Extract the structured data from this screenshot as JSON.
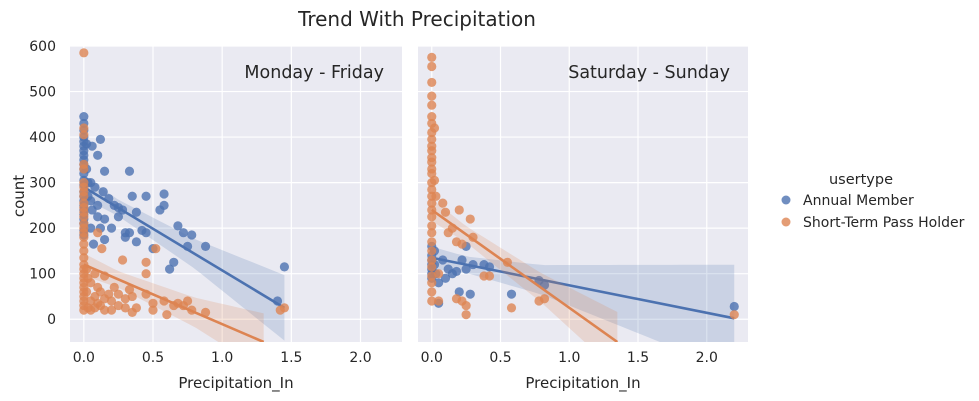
{
  "chart_data": {
    "type": "scatter",
    "title": "Trend With Precipitation",
    "xlabel": "Precipitation_In",
    "ylabel": "count",
    "xlim": [
      -0.1,
      2.3
    ],
    "ylim": [
      -50,
      600
    ],
    "xticks": [
      "0.0",
      "0.5",
      "1.0",
      "1.5",
      "2.0"
    ],
    "xtick_values": [
      0,
      0.5,
      1.0,
      1.5,
      2.0
    ],
    "yticks": [
      "0",
      "100",
      "200",
      "300",
      "400",
      "500",
      "600"
    ],
    "ytick_values": [
      0,
      100,
      200,
      300,
      400,
      500,
      600
    ],
    "grid": true,
    "legend": {
      "title": "usertype",
      "placement": "right",
      "entries": [
        "Annual Member",
        "Short-Term Pass Holder"
      ]
    },
    "colors": {
      "Annual Member": "#4c72b0",
      "Short-Term Pass Holder": "#dd8452",
      "background": "#eaeaf2",
      "grid": "#ffffff"
    },
    "panels": [
      {
        "title": "Monday - Friday",
        "series": [
          {
            "name": "Annual Member",
            "points": [
              [
                0,
                445
              ],
              [
                0,
                430
              ],
              [
                0,
                415
              ],
              [
                0,
                400
              ],
              [
                0,
                390
              ],
              [
                0,
                380
              ],
              [
                0,
                370
              ],
              [
                0,
                360
              ],
              [
                0,
                350
              ],
              [
                0,
                340
              ],
              [
                0,
                330
              ],
              [
                0,
                320
              ],
              [
                0,
                305
              ],
              [
                0,
                295
              ],
              [
                0,
                280
              ],
              [
                0,
                270
              ],
              [
                0,
                260
              ],
              [
                0,
                250
              ],
              [
                0,
                240
              ],
              [
                0,
                230
              ],
              [
                0,
                220
              ],
              [
                0,
                210
              ],
              [
                0,
                195
              ],
              [
                0,
                185
              ],
              [
                0.02,
                385
              ],
              [
                0.02,
                330
              ],
              [
                0.03,
                300
              ],
              [
                0.03,
                270
              ],
              [
                0.05,
                300
              ],
              [
                0.05,
                260
              ],
              [
                0.05,
                200
              ],
              [
                0.06,
                380
              ],
              [
                0.06,
                240
              ],
              [
                0.07,
                165
              ],
              [
                0.08,
                290
              ],
              [
                0.1,
                360
              ],
              [
                0.1,
                250
              ],
              [
                0.1,
                225
              ],
              [
                0.12,
                395
              ],
              [
                0.12,
                200
              ],
              [
                0.14,
                280
              ],
              [
                0.15,
                325
              ],
              [
                0.15,
                220
              ],
              [
                0.15,
                175
              ],
              [
                0.18,
                265
              ],
              [
                0.2,
                200
              ],
              [
                0.22,
                250
              ],
              [
                0.25,
                245
              ],
              [
                0.25,
                225
              ],
              [
                0.28,
                240
              ],
              [
                0.3,
                180
              ],
              [
                0.3,
                190
              ],
              [
                0.33,
                325
              ],
              [
                0.33,
                190
              ],
              [
                0.35,
                270
              ],
              [
                0.38,
                235
              ],
              [
                0.38,
                170
              ],
              [
                0.42,
                195
              ],
              [
                0.45,
                270
              ],
              [
                0.45,
                190
              ],
              [
                0.5,
                155
              ],
              [
                0.55,
                240
              ],
              [
                0.58,
                275
              ],
              [
                0.58,
                250
              ],
              [
                0.62,
                110
              ],
              [
                0.65,
                125
              ],
              [
                0.68,
                205
              ],
              [
                0.72,
                190
              ],
              [
                0.75,
                160
              ],
              [
                0.78,
                185
              ],
              [
                0.88,
                160
              ],
              [
                1.4,
                40
              ],
              [
                1.45,
                115
              ]
            ],
            "fit": [
              [
                0,
                290
              ],
              [
                1.45,
                25
              ]
            ]
          },
          {
            "name": "Short-Term Pass Holder",
            "points": [
              [
                0,
                585
              ],
              [
                0,
                420
              ],
              [
                0,
                405
              ],
              [
                0,
                340
              ],
              [
                0,
                330
              ],
              [
                0,
                300
              ],
              [
                0,
                290
              ],
              [
                0,
                280
              ],
              [
                0,
                270
              ],
              [
                0,
                255
              ],
              [
                0,
                245
              ],
              [
                0,
                235
              ],
              [
                0,
                225
              ],
              [
                0,
                210
              ],
              [
                0,
                200
              ],
              [
                0,
                190
              ],
              [
                0,
                180
              ],
              [
                0,
                165
              ],
              [
                0,
                150
              ],
              [
                0,
                135
              ],
              [
                0,
                120
              ],
              [
                0,
                110
              ],
              [
                0,
                100
              ],
              [
                0,
                90
              ],
              [
                0,
                80
              ],
              [
                0,
                70
              ],
              [
                0,
                60
              ],
              [
                0,
                50
              ],
              [
                0,
                40
              ],
              [
                0,
                30
              ],
              [
                0,
                20
              ],
              [
                0.02,
                110
              ],
              [
                0.02,
                60
              ],
              [
                0.03,
                90
              ],
              [
                0.03,
                25
              ],
              [
                0.05,
                80
              ],
              [
                0.05,
                40
              ],
              [
                0.05,
                20
              ],
              [
                0.08,
                100
              ],
              [
                0.08,
                50
              ],
              [
                0.08,
                25
              ],
              [
                0.1,
                190
              ],
              [
                0.1,
                70
              ],
              [
                0.1,
                35
              ],
              [
                0.12,
                60
              ],
              [
                0.12,
                30
              ],
              [
                0.13,
                155
              ],
              [
                0.15,
                95
              ],
              [
                0.15,
                45
              ],
              [
                0.15,
                20
              ],
              [
                0.18,
                55
              ],
              [
                0.2,
                40
              ],
              [
                0.2,
                20
              ],
              [
                0.22,
                70
              ],
              [
                0.25,
                30
              ],
              [
                0.25,
                55
              ],
              [
                0.28,
                130
              ],
              [
                0.3,
                25
              ],
              [
                0.3,
                45
              ],
              [
                0.33,
                65
              ],
              [
                0.35,
                15
              ],
              [
                0.35,
                50
              ],
              [
                0.38,
                25
              ],
              [
                0.45,
                100
              ],
              [
                0.45,
                55
              ],
              [
                0.45,
                125
              ],
              [
                0.5,
                20
              ],
              [
                0.5,
                35
              ],
              [
                0.52,
                155
              ],
              [
                0.58,
                40
              ],
              [
                0.6,
                10
              ],
              [
                0.65,
                30
              ],
              [
                0.68,
                35
              ],
              [
                0.72,
                30
              ],
              [
                0.75,
                40
              ],
              [
                0.78,
                20
              ],
              [
                0.88,
                15
              ],
              [
                1.42,
                20
              ],
              [
                1.45,
                25
              ]
            ],
            "fit": [
              [
                0,
                120
              ],
              [
                1.3,
                -50
              ]
            ]
          }
        ]
      },
      {
        "title": "Saturday - Sunday",
        "series": [
          {
            "name": "Annual Member",
            "points": [
              [
                0,
                160
              ],
              [
                0,
                140
              ],
              [
                0,
                130
              ],
              [
                0,
                120
              ],
              [
                0,
                110
              ],
              [
                0,
                100
              ],
              [
                0,
                90
              ],
              [
                0.02,
                150
              ],
              [
                0.02,
                120
              ],
              [
                0.03,
                100
              ],
              [
                0.05,
                80
              ],
              [
                0.05,
                35
              ],
              [
                0.08,
                130
              ],
              [
                0.1,
                90
              ],
              [
                0.12,
                110
              ],
              [
                0.15,
                100
              ],
              [
                0.18,
                105
              ],
              [
                0.2,
                60
              ],
              [
                0.22,
                130
              ],
              [
                0.25,
                160
              ],
              [
                0.25,
                110
              ],
              [
                0.28,
                55
              ],
              [
                0.3,
                120
              ],
              [
                0.38,
                120
              ],
              [
                0.42,
                115
              ],
              [
                0.58,
                55
              ],
              [
                0.78,
                85
              ],
              [
                0.82,
                75
              ],
              [
                2.2,
                28
              ]
            ],
            "fit": [
              [
                0,
                135
              ],
              [
                2.2,
                2
              ]
            ]
          },
          {
            "name": "Short-Term Pass Holder",
            "points": [
              [
                0,
                575
              ],
              [
                0,
                555
              ],
              [
                0,
                520
              ],
              [
                0,
                490
              ],
              [
                0,
                470
              ],
              [
                0,
                445
              ],
              [
                0,
                430
              ],
              [
                0,
                410
              ],
              [
                0,
                395
              ],
              [
                0,
                380
              ],
              [
                0,
                370
              ],
              [
                0,
                355
              ],
              [
                0,
                345
              ],
              [
                0,
                330
              ],
              [
                0,
                320
              ],
              [
                0,
                300
              ],
              [
                0,
                285
              ],
              [
                0,
                270
              ],
              [
                0,
                255
              ],
              [
                0,
                240
              ],
              [
                0,
                225
              ],
              [
                0,
                205
              ],
              [
                0,
                190
              ],
              [
                0,
                170
              ],
              [
                0,
                150
              ],
              [
                0,
                130
              ],
              [
                0,
                115
              ],
              [
                0,
                95
              ],
              [
                0,
                80
              ],
              [
                0,
                60
              ],
              [
                0,
                40
              ],
              [
                0.02,
                420
              ],
              [
                0.02,
                305
              ],
              [
                0.03,
                270
              ],
              [
                0.05,
                100
              ],
              [
                0.05,
                40
              ],
              [
                0.08,
                255
              ],
              [
                0.1,
                235
              ],
              [
                0.12,
                190
              ],
              [
                0.15,
                200
              ],
              [
                0.18,
                170
              ],
              [
                0.18,
                45
              ],
              [
                0.2,
                240
              ],
              [
                0.22,
                165
              ],
              [
                0.22,
                40
              ],
              [
                0.25,
                30
              ],
              [
                0.25,
                10
              ],
              [
                0.28,
                220
              ],
              [
                0.3,
                180
              ],
              [
                0.38,
                95
              ],
              [
                0.42,
                95
              ],
              [
                0.55,
                125
              ],
              [
                0.58,
                25
              ],
              [
                0.78,
                40
              ],
              [
                0.82,
                45
              ],
              [
                2.2,
                10
              ]
            ],
            "fit": [
              [
                0,
                240
              ],
              [
                1.35,
                -50
              ]
            ]
          }
        ]
      }
    ]
  }
}
